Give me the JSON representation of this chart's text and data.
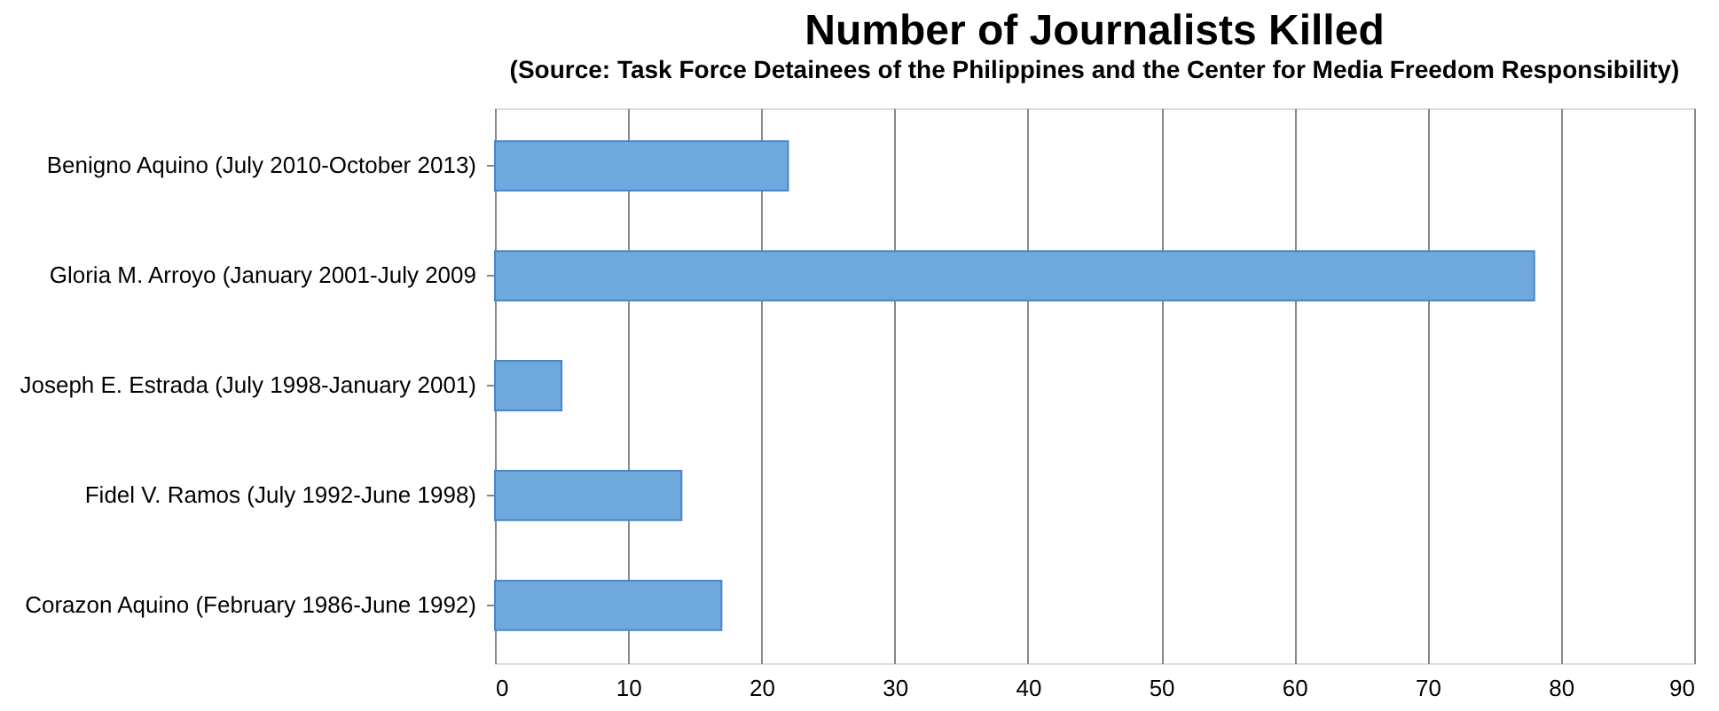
{
  "chart_data": {
    "type": "bar",
    "orientation": "horizontal",
    "title": "Number of Journalists Killed",
    "subtitle": "(Source: Task Force Detainees of the Philippines and the Center for Media Freedom Responsibility)",
    "categories": [
      "Benigno Aquino  (July 2010-October 2013)",
      "Gloria M. Arroyo (January 2001-July 2009",
      "Joseph E. Estrada (July 1998-January 2001)",
      "Fidel V. Ramos (July 1992-June 1998)",
      "Corazon Aquino (February 1986-June 1992)"
    ],
    "values": [
      22,
      78,
      5,
      14,
      17
    ],
    "color": "#6fa8dc",
    "xlim": [
      0,
      90
    ],
    "xticks": [
      0,
      10,
      20,
      30,
      40,
      50,
      60,
      70,
      80,
      90
    ],
    "grid": "x"
  }
}
